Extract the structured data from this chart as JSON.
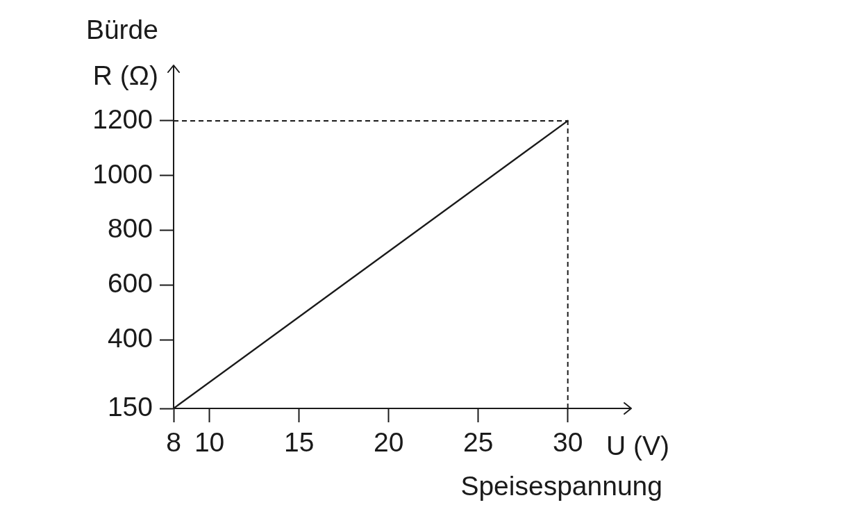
{
  "chart_data": {
    "type": "line",
    "xlabel": "U (V)",
    "ylabel": "Bürde\nR (Ω)",
    "annotations": [
      "Speisespannung"
    ],
    "x": [
      8,
      30
    ],
    "values": [
      150,
      1200
    ],
    "color": "#1a1a1a",
    "xlim": [
      8,
      33.5
    ],
    "ylim": [
      150,
      1400
    ],
    "xticks": [
      8,
      10,
      15,
      20,
      25,
      30
    ],
    "yticks": [
      150,
      400,
      600,
      800,
      1000,
      1200
    ],
    "grid": false,
    "marker": "none",
    "line_style": "solid",
    "ref_lines": [
      {
        "axis": "y",
        "value": 1200,
        "line_style": "dashed",
        "color": "#1a1a1a"
      },
      {
        "axis": "x",
        "value": 30,
        "line_style": "dashed",
        "color": "#1a1a1a"
      }
    ]
  }
}
